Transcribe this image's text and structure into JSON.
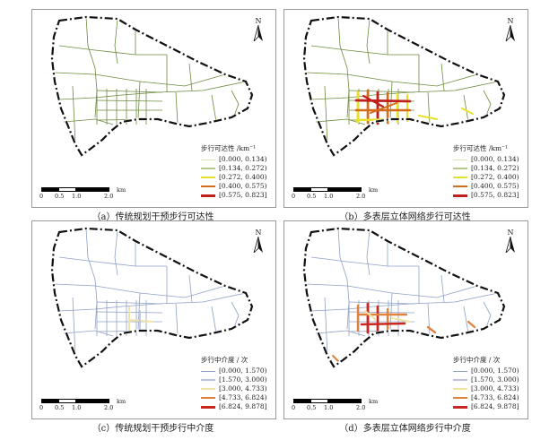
{
  "north_label": "N",
  "scale": {
    "ticks": [
      "0",
      "0.5",
      "1.0",
      "2.0"
    ],
    "unit": "km"
  },
  "panels": [
    {
      "caption": "（a）传统规划干预步行可达性",
      "legend_title": "步行可达性 /km⁻¹",
      "legend_items": [
        "[0.000, 0.134)",
        "[0.134, 0.272)",
        "[0.272, 0.400)",
        "[0.400, 0.575)",
        "[0.575, 0.823]"
      ],
      "colors": [
        "#d9e3b8",
        "#b6c989",
        "#e6e12d",
        "#d36d1a",
        "#c0201b"
      ],
      "network_color": "#6d8a3d"
    },
    {
      "caption": "（b）多表层立体网络步行可达性",
      "legend_title": "步行可达性 /km⁻¹",
      "legend_items": [
        "[0.000, 0.134)",
        "[0.134, 0.272)",
        "[0.272, 0.400)",
        "[0.400, 0.575)",
        "[0.575, 0.823]"
      ],
      "colors": [
        "#d9e3b8",
        "#b6c989",
        "#e6e12d",
        "#d36d1a",
        "#c0201b"
      ],
      "network_color": "#6d8a3d"
    },
    {
      "caption": "（c）传统规划干预步行中介度",
      "legend_title": "步行中介度 / 次",
      "legend_items": [
        "[0.000, 1.570)",
        "[1.570, 3.000)",
        "[3.000, 4.733)",
        "[4.733, 6.824)",
        "[6.824, 9.878]"
      ],
      "colors": [
        "#8ea0c8",
        "#b9c3dd",
        "#f1e3a4",
        "#e0823c",
        "#c8281f"
      ],
      "network_color": "#8fa0c6"
    },
    {
      "caption": "（d）多表层立体网络步行中介度",
      "legend_title": "步行中介度 / 次",
      "legend_items": [
        "[0.000, 1.570)",
        "[1.570, 3.000)",
        "[3.000, 4.733)",
        "[4.733, 6.824)",
        "[6.824, 9.878]"
      ],
      "colors": [
        "#8ea0c8",
        "#b9c3dd",
        "#f1e3a4",
        "#e0823c",
        "#c8281f"
      ],
      "network_color": "#8fa0c6"
    }
  ]
}
